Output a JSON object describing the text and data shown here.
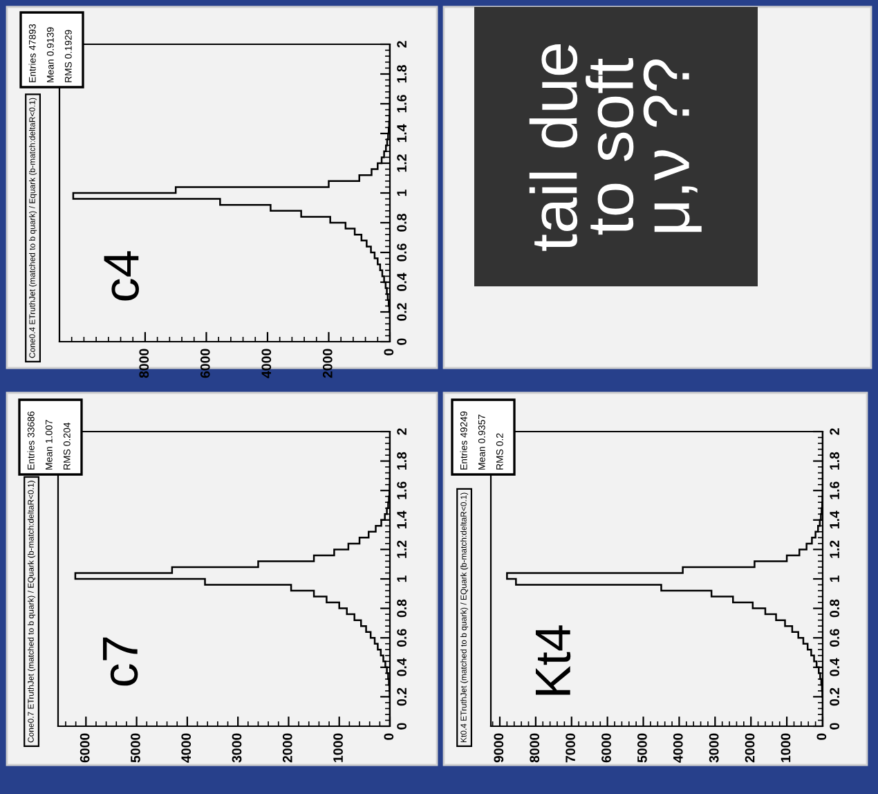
{
  "chart_data": [
    {
      "type": "histogram",
      "orientation": "horizontal",
      "title": "Cone0.4 ETruthJet (matched to b quark) / Equark (b-match:deltaR<0.1)",
      "annotations": [
        "c4",
        "Entries 47893",
        "Mean 0.9139",
        "RMS 0.1929"
      ],
      "bins": [
        0,
        0.04,
        0.08,
        0.12,
        0.16,
        0.2,
        0.24,
        0.28,
        0.32,
        0.36,
        0.4,
        0.44,
        0.48,
        0.52,
        0.56,
        0.6,
        0.64,
        0.68,
        0.72,
        0.76,
        0.8,
        0.84,
        0.88,
        0.92,
        0.96,
        1,
        1.04,
        1.08,
        1.12,
        1.16,
        1.2,
        1.24,
        1.28,
        1.32,
        1.36,
        1.4,
        1.44,
        1.48,
        1.52,
        1.56,
        1.6,
        1.64,
        1.68,
        1.72,
        1.76,
        1.8,
        1.84,
        1.88,
        1.92,
        1.96,
        2
      ],
      "values": [
        0,
        0,
        0,
        0,
        0,
        20,
        40,
        70,
        100,
        140,
        190,
        250,
        320,
        400,
        500,
        620,
        760,
        930,
        1150,
        1450,
        1950,
        2900,
        3900,
        5550,
        10350,
        7000,
        2000,
        1000,
        600,
        400,
        270,
        190,
        130,
        90,
        60,
        40,
        25,
        15,
        10,
        6,
        4,
        2,
        1,
        0,
        0,
        0,
        0,
        0,
        0,
        0
      ],
      "color": "#000000",
      "xlim": [
        10800,
        0
      ],
      "xticks": [
        0,
        2000,
        4000,
        6000,
        8000
      ],
      "ylim": [
        0,
        2
      ],
      "yticks": [
        0,
        0.2,
        0.4,
        0.6,
        0.8,
        1,
        1.2,
        1.4,
        1.6,
        1.8,
        2
      ]
    },
    {
      "type": "other",
      "annotations": [
        "tail due\nto soft\nμ,ν ??"
      ]
    },
    {
      "type": "histogram",
      "orientation": "horizontal",
      "title": "Cone0.7 ETruthJet (matched to b quark) / EQuark (b-match:deltaR<0.1)",
      "annotations": [
        "c7",
        "Entries 33686",
        "Mean 1.007",
        "RMS 0.204"
      ],
      "bins": [
        0,
        0.04,
        0.08,
        0.12,
        0.16,
        0.2,
        0.24,
        0.28,
        0.32,
        0.36,
        0.4,
        0.44,
        0.48,
        0.52,
        0.56,
        0.6,
        0.64,
        0.68,
        0.72,
        0.76,
        0.8,
        0.84,
        0.88,
        0.92,
        0.96,
        1,
        1.04,
        1.08,
        1.12,
        1.16,
        1.2,
        1.24,
        1.28,
        1.32,
        1.36,
        1.4,
        1.44,
        1.48,
        1.52,
        1.56,
        1.6,
        1.64,
        1.68,
        1.72,
        1.76,
        1.8,
        1.84,
        1.88,
        1.92,
        1.96,
        2
      ],
      "values": [
        0,
        0,
        0,
        0,
        0,
        5,
        10,
        20,
        35,
        60,
        90,
        130,
        180,
        240,
        300,
        380,
        470,
        570,
        700,
        850,
        1000,
        1250,
        1500,
        1950,
        3650,
        6210,
        4300,
        2600,
        1500,
        1100,
        820,
        600,
        420,
        280,
        170,
        100,
        60,
        35,
        20,
        10,
        6,
        3,
        1,
        0,
        0,
        0,
        0,
        0,
        0,
        0
      ],
      "color": "#000000",
      "xlim": [
        6550,
        0
      ],
      "xticks": [
        0,
        1000,
        2000,
        3000,
        4000,
        5000,
        6000
      ],
      "ylim": [
        0,
        2
      ],
      "yticks": [
        0,
        0.2,
        0.4,
        0.6,
        0.8,
        1,
        1.2,
        1.4,
        1.6,
        1.8,
        2
      ]
    },
    {
      "type": "histogram",
      "orientation": "horizontal",
      "title": "Kt0.4 ETruthJet (matched to b quark) / EQuark (b-match:deltaR<0.1)",
      "annotations": [
        "Kt4",
        "Entries 49249",
        "Mean 0.9357",
        "RMS 0.2"
      ],
      "bins": [
        0,
        0.04,
        0.08,
        0.12,
        0.16,
        0.2,
        0.24,
        0.28,
        0.32,
        0.36,
        0.4,
        0.44,
        0.48,
        0.52,
        0.56,
        0.6,
        0.64,
        0.68,
        0.72,
        0.76,
        0.8,
        0.84,
        0.88,
        0.92,
        0.96,
        1,
        1.04,
        1.08,
        1.12,
        1.16,
        1.2,
        1.24,
        1.28,
        1.32,
        1.36,
        1.4,
        1.44,
        1.48,
        1.52,
        1.56,
        1.6,
        1.64,
        1.68,
        1.72,
        1.76,
        1.8,
        1.84,
        1.88,
        1.92,
        1.96,
        2
      ],
      "values": [
        0,
        0,
        0,
        0,
        0,
        10,
        20,
        40,
        70,
        110,
        170,
        240,
        320,
        420,
        540,
        680,
        850,
        1050,
        1300,
        1600,
        1950,
        2500,
        3100,
        4500,
        8550,
        8800,
        3900,
        1900,
        1000,
        650,
        450,
        300,
        200,
        130,
        80,
        50,
        30,
        15,
        8,
        4,
        2,
        1,
        0,
        0,
        0,
        0,
        0,
        0,
        0,
        0
      ],
      "color": "#000000",
      "xlim": [
        9250,
        0
      ],
      "xticks": [
        0,
        1000,
        2000,
        3000,
        4000,
        5000,
        6000,
        7000,
        8000,
        9000
      ],
      "ylim": [
        0,
        2
      ],
      "yticks": [
        0,
        0.2,
        0.4,
        0.6,
        0.8,
        1,
        1.2,
        1.4,
        1.6,
        1.8,
        2
      ]
    }
  ]
}
